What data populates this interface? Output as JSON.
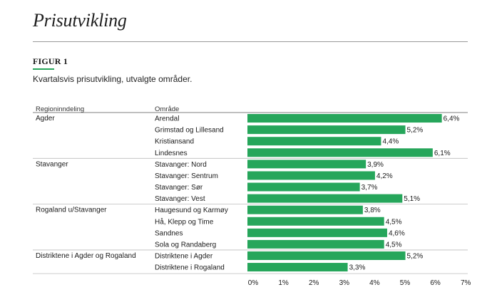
{
  "header": {
    "page_title": "Prisutvikling",
    "figure_label": "FIGUR 1",
    "figure_description": "Kvartalsvis prisutvikling, utvalgte områder."
  },
  "colors": {
    "bar": "#26a65b",
    "accent": "#26a65b",
    "text": "#1a1a1a",
    "rule": "#bdbdbd"
  },
  "chart_data": {
    "type": "bar",
    "orientation": "horizontal",
    "title": "Kvartalsvis prisutvikling, utvalgte områder.",
    "column_headers": [
      "Regioninndeling",
      "Område"
    ],
    "xlim": [
      0,
      7
    ],
    "x_ticks": [
      "0%",
      "1%",
      "2%",
      "3%",
      "4%",
      "5%",
      "6%",
      "7%"
    ],
    "grid": false,
    "groups": [
      {
        "region": "Agder",
        "items": [
          {
            "label": "Arendal",
            "value": 6.4,
            "value_label": "6,4%"
          },
          {
            "label": "Grimstad og Lillesand",
            "value": 5.2,
            "value_label": "5,2%"
          },
          {
            "label": "Kristiansand",
            "value": 4.4,
            "value_label": "4,4%"
          },
          {
            "label": "Lindesnes",
            "value": 6.1,
            "value_label": "6,1%"
          }
        ]
      },
      {
        "region": "Stavanger",
        "items": [
          {
            "label": "Stavanger: Nord",
            "value": 3.9,
            "value_label": "3,9%"
          },
          {
            "label": "Stavanger: Sentrum",
            "value": 4.2,
            "value_label": "4,2%"
          },
          {
            "label": "Stavanger: Sør",
            "value": 3.7,
            "value_label": "3,7%"
          },
          {
            "label": "Stavanger: Vest",
            "value": 5.1,
            "value_label": "5,1%"
          }
        ]
      },
      {
        "region": "Rogaland u/Stavanger",
        "items": [
          {
            "label": "Haugesund og Karmøy",
            "value": 3.8,
            "value_label": "3,8%"
          },
          {
            "label": "Hå, Klepp og Time",
            "value": 4.5,
            "value_label": "4,5%"
          },
          {
            "label": "Sandnes",
            "value": 4.6,
            "value_label": "4,6%"
          },
          {
            "label": "Sola og Randaberg",
            "value": 4.5,
            "value_label": "4,5%"
          }
        ]
      },
      {
        "region": "Distriktene i Agder og Rogaland",
        "items": [
          {
            "label": "Distriktene i Agder",
            "value": 5.2,
            "value_label": "5,2%"
          },
          {
            "label": "Distriktene i Rogaland",
            "value": 3.3,
            "value_label": "3,3%"
          }
        ]
      }
    ]
  }
}
